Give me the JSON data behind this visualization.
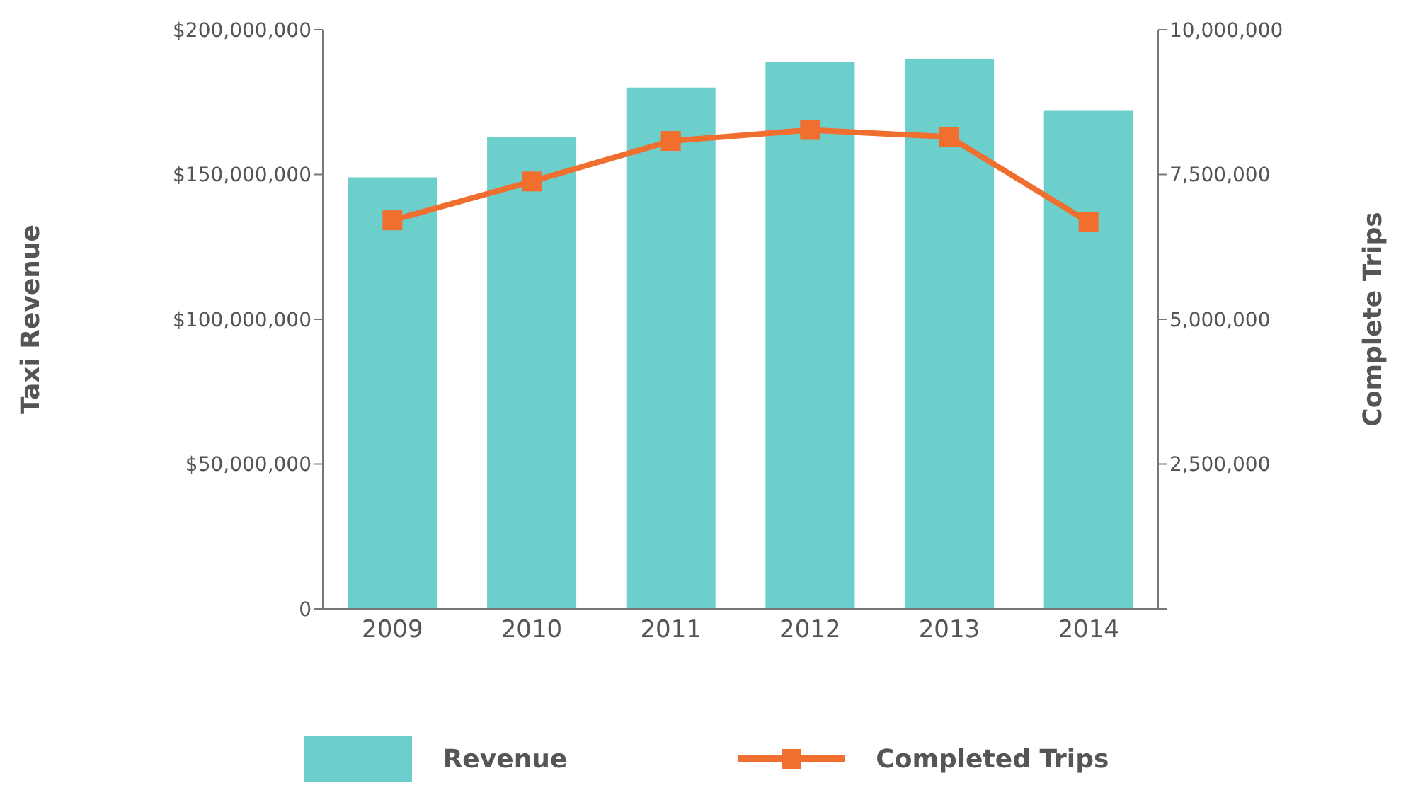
{
  "chart_data": {
    "type": "bar",
    "categories": [
      "2009",
      "2010",
      "2011",
      "2012",
      "2013",
      "2014"
    ],
    "series": [
      {
        "name": "Revenue",
        "color": "#6dcfcb",
        "values": [
          149000000,
          163000000,
          180000000,
          189000000,
          190000000,
          172000000
        ]
      },
      {
        "name": "Completed Trips",
        "type": "line",
        "axis": "y2",
        "color": "#f06e2e",
        "marker": "square",
        "values": [
          6710000,
          7380000,
          8080000,
          8270000,
          8150000,
          6680000
        ]
      }
    ],
    "ylabel": "Taxi Revenue",
    "y2label": "Complete Trips",
    "ylim": [
      0,
      200000000
    ],
    "yticks": [
      {
        "value": 0,
        "label": "0"
      },
      {
        "value": 50000000,
        "label": "$50,000,000"
      },
      {
        "value": 100000000,
        "label": "$100,000,000"
      },
      {
        "value": 150000000,
        "label": "$150,000,000"
      },
      {
        "value": 200000000,
        "label": "$200,000,000"
      }
    ],
    "y2lim": [
      0,
      10000000
    ],
    "y2ticks": [
      {
        "value": 0,
        "label": null
      },
      {
        "value": 2500000,
        "label": "2,500,000"
      },
      {
        "value": 5000000,
        "label": "5,000,000"
      },
      {
        "value": 7500000,
        "label": "7,500,000"
      },
      {
        "value": 10000000,
        "label": "10,000,000"
      }
    ],
    "grid": false,
    "legend": "bottom"
  }
}
